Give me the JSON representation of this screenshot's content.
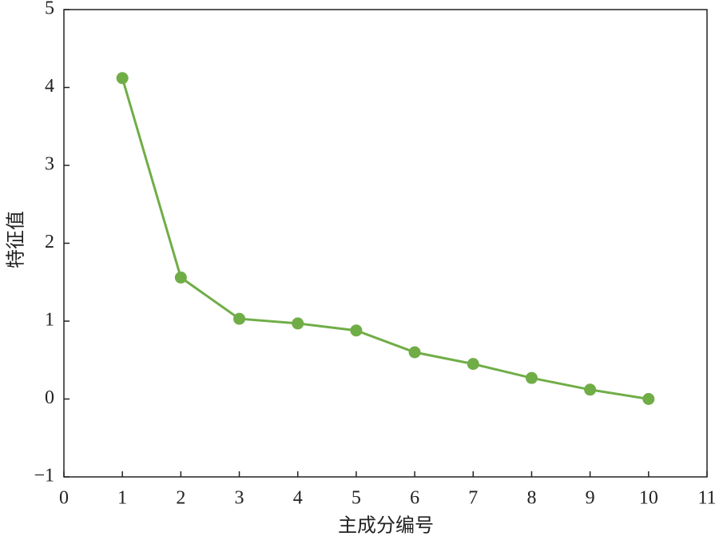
{
  "chart_data": {
    "type": "line",
    "xlabel": "主成分编号",
    "ylabel": "特征值",
    "x": [
      1,
      2,
      3,
      4,
      5,
      6,
      7,
      8,
      9,
      10
    ],
    "series": [
      {
        "color": "#70ad47",
        "values": [
          4.12,
          1.56,
          1.03,
          0.97,
          0.88,
          0.6,
          0.45,
          0.27,
          0.12,
          0.0
        ]
      }
    ],
    "xlim": [
      0,
      11
    ],
    "xticks": [
      0,
      1,
      2,
      3,
      4,
      5,
      6,
      7,
      8,
      9,
      10,
      11
    ],
    "ylim": [
      -1,
      5
    ],
    "yticks": [
      {
        "value": -1,
        "label": "−1"
      },
      0,
      1,
      2,
      3,
      4,
      5
    ]
  }
}
